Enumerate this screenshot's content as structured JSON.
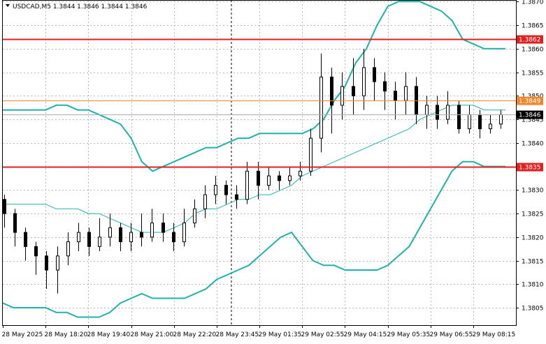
{
  "header": {
    "symbol_line": "USDCAD,M5  1.3844 1.3846 1.3844 1.3846"
  },
  "price_axis": {
    "ticks": [
      "1.3870",
      "1.3865",
      "1.3860",
      "1.3855",
      "1.3850",
      "1.3845",
      "1.3840",
      "1.3835",
      "1.3830",
      "1.3825",
      "1.3820",
      "1.3815",
      "1.3810",
      "1.3805"
    ],
    "tick_values": [
      1.387,
      1.3865,
      1.386,
      1.3855,
      1.385,
      1.3845,
      1.384,
      1.3835,
      1.383,
      1.3825,
      1.382,
      1.3815,
      1.381,
      1.3805
    ],
    "range": [
      1.38013,
      1.38702
    ]
  },
  "time_axis": {
    "labels": [
      "28 May 2025",
      "28 May 18:20",
      "28 May 19:40",
      "28 May 21:00",
      "28 May 22:20",
      "28 May 23:45",
      "29 May 01:35",
      "29 May 02:55",
      "29 May 04:15",
      "29 May 05:35",
      "29 May 06:55",
      "29 May 08:15"
    ]
  },
  "levels": [
    {
      "name": "resistance",
      "price": 1.3862,
      "label": "1.3862",
      "color": "#e02020"
    },
    {
      "name": "pivot",
      "price": 1.3849,
      "label": "1.3849",
      "color": "#f0862a"
    },
    {
      "name": "support",
      "price": 1.3835,
      "label": "1.3835",
      "color": "#e02020"
    }
  ],
  "current_price": {
    "price": 1.3846,
    "label": "1.3846",
    "color": "#000000"
  },
  "colors": {
    "bollinger": "#20b2aa",
    "candle": "#000000",
    "grid": "#b8b8b8",
    "axis": "#000000"
  },
  "chart_data": {
    "type": "candlestick",
    "series": [
      {
        "kind": "bollinger-upper",
        "values": [
          1.3847,
          1.3847,
          1.3847,
          1.3847,
          1.3847,
          1.3848,
          1.3848,
          1.3847,
          1.3847,
          1.3846,
          1.3845,
          1.3844,
          1.3841,
          1.3836,
          1.3834,
          1.3835,
          1.3836,
          1.3837,
          1.3838,
          1.3839,
          1.3839,
          1.384,
          1.3841,
          1.3841,
          1.3842,
          1.3842,
          1.3842,
          1.3842,
          1.3842,
          1.3843,
          1.3845,
          1.3849,
          1.3852,
          1.3857,
          1.386,
          1.3865,
          1.3869,
          1.387,
          1.387,
          1.387,
          1.3869,
          1.3868,
          1.3866,
          1.3862,
          1.3861,
          1.386,
          1.386,
          1.386
        ]
      },
      {
        "kind": "bollinger-middle",
        "values": [
          1.3827,
          1.3827,
          1.3827,
          1.3827,
          1.3827,
          1.3826,
          1.3826,
          1.3826,
          1.3825,
          1.3825,
          1.3824,
          1.3823,
          1.3822,
          1.3821,
          1.3821,
          1.3821,
          1.3822,
          1.3823,
          1.3825,
          1.3826,
          1.3826,
          1.3827,
          1.3828,
          1.3828,
          1.3829,
          1.3829,
          1.383,
          1.3831,
          1.3833,
          1.3834,
          1.3835,
          1.3836,
          1.3837,
          1.3838,
          1.3839,
          1.384,
          1.3841,
          1.3842,
          1.3843,
          1.3845,
          1.3846,
          1.3847,
          1.3848,
          1.3848,
          1.3848,
          1.3847,
          1.3847,
          1.3847
        ]
      },
      {
        "kind": "bollinger-lower",
        "values": [
          1.3806,
          1.3805,
          1.3805,
          1.3805,
          1.3805,
          1.3804,
          1.3804,
          1.3803,
          1.3803,
          1.3803,
          1.3804,
          1.3806,
          1.3807,
          1.3808,
          1.3807,
          1.3807,
          1.3807,
          1.3807,
          1.3808,
          1.3809,
          1.3811,
          1.3812,
          1.3813,
          1.3814,
          1.3816,
          1.3818,
          1.382,
          1.3821,
          1.3818,
          1.3815,
          1.3814,
          1.3814,
          1.3813,
          1.3813,
          1.3813,
          1.3813,
          1.3814,
          1.3816,
          1.3818,
          1.3822,
          1.3826,
          1.383,
          1.3834,
          1.3836,
          1.3836,
          1.3835,
          1.3835,
          1.3835
        ]
      }
    ],
    "candles": [
      [
        1.3828,
        1.3825,
        1.3829,
        1.3822
      ],
      [
        1.3825,
        1.3821,
        1.3826,
        1.3818
      ],
      [
        1.3821,
        1.3818,
        1.3822,
        1.3815
      ],
      [
        1.3818,
        1.3816,
        1.3819,
        1.3812
      ],
      [
        1.3816,
        1.3813,
        1.3817,
        1.3809
      ],
      [
        1.3813,
        1.3816,
        1.3818,
        1.3808
      ],
      [
        1.3816,
        1.3819,
        1.3821,
        1.3814
      ],
      [
        1.3819,
        1.3821,
        1.3823,
        1.3817
      ],
      [
        1.3821,
        1.3818,
        1.3822,
        1.3816
      ],
      [
        1.3818,
        1.382,
        1.3824,
        1.3817
      ],
      [
        1.382,
        1.3822,
        1.3825,
        1.3818
      ],
      [
        1.3822,
        1.3819,
        1.3823,
        1.3817
      ],
      [
        1.3819,
        1.3821,
        1.3823,
        1.3817
      ],
      [
        1.3821,
        1.382,
        1.3825,
        1.3818
      ],
      [
        1.382,
        1.3823,
        1.3826,
        1.3819
      ],
      [
        1.3823,
        1.3821,
        1.3825,
        1.3819
      ],
      [
        1.3821,
        1.3819,
        1.3823,
        1.3817
      ],
      [
        1.3819,
        1.3823,
        1.3826,
        1.3818
      ],
      [
        1.3823,
        1.3826,
        1.3828,
        1.3822
      ],
      [
        1.3826,
        1.3829,
        1.3831,
        1.3824
      ],
      [
        1.3829,
        1.3831,
        1.3833,
        1.3827
      ],
      [
        1.3831,
        1.3829,
        1.3832,
        1.3827
      ],
      [
        1.3829,
        1.3828,
        1.3831,
        1.3826
      ],
      [
        1.3828,
        1.3834,
        1.3836,
        1.3827
      ],
      [
        1.3834,
        1.3831,
        1.3836,
        1.3828
      ],
      [
        1.3831,
        1.3833,
        1.3835,
        1.383
      ],
      [
        1.3833,
        1.3832,
        1.3834,
        1.383
      ],
      [
        1.3832,
        1.3833,
        1.3835,
        1.3831
      ],
      [
        1.3833,
        1.3834,
        1.3836,
        1.3832
      ],
      [
        1.3834,
        1.3841,
        1.3843,
        1.3833
      ],
      [
        1.3841,
        1.3854,
        1.3859,
        1.3838
      ],
      [
        1.3854,
        1.3848,
        1.3856,
        1.3842
      ],
      [
        1.3848,
        1.3852,
        1.3855,
        1.3845
      ],
      [
        1.3852,
        1.385,
        1.3858,
        1.3846
      ],
      [
        1.385,
        1.3856,
        1.386,
        1.3847
      ],
      [
        1.3856,
        1.3853,
        1.3858,
        1.3849
      ],
      [
        1.3853,
        1.3851,
        1.3855,
        1.3847
      ],
      [
        1.3851,
        1.3849,
        1.3853,
        1.3845
      ],
      [
        1.3849,
        1.3852,
        1.3855,
        1.3846
      ],
      [
        1.3852,
        1.3846,
        1.3854,
        1.3844
      ],
      [
        1.3846,
        1.3848,
        1.385,
        1.3843
      ],
      [
        1.3848,
        1.3845,
        1.385,
        1.3843
      ],
      [
        1.3845,
        1.3848,
        1.3851,
        1.3844
      ],
      [
        1.3848,
        1.3843,
        1.3849,
        1.3842
      ],
      [
        1.3843,
        1.3846,
        1.3848,
        1.3842
      ],
      [
        1.3846,
        1.3843,
        1.3847,
        1.3841
      ],
      [
        1.3843,
        1.3844,
        1.3846,
        1.3842
      ],
      [
        1.3844,
        1.3846,
        1.3847,
        1.3843
      ]
    ]
  }
}
